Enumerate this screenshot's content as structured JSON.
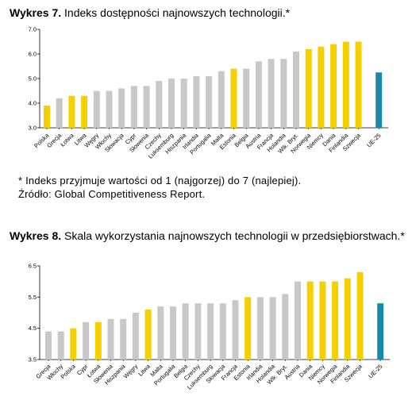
{
  "charts_text": {
    "c1": {
      "label": "Wykres 7.",
      "text": "Indeks dostępności najnowszych technologii.*",
      "note1": "* Indeks przyjmuje wartości od 1 (najgorzej) do 7 (najlepiej).",
      "note2": "Źródło: Global Competitiveness Report."
    },
    "c2": {
      "label": "Wykres 8.",
      "text": "Skala wykorzystania najnowszych technologii w przedsiębiorstwach.*"
    }
  },
  "colors": {
    "gray": "#c8c8c8",
    "yellow": "#f5d000",
    "blue": "#1a8aa8",
    "axis": "#000000"
  },
  "chart_data": [
    {
      "type": "bar",
      "title": "Indeks dostępności najnowszych technologii.*",
      "ylim": [
        3.0,
        7.0
      ],
      "yticks": [
        "7.0",
        "6.0",
        "5.0",
        "4.0",
        "3.0"
      ],
      "ytick_values": [
        7.0,
        6.0,
        5.0,
        4.0,
        3.0
      ],
      "grid": false,
      "categories": [
        "Polska",
        "Grecja",
        "Łotwa",
        "Litwa",
        "Węgry",
        "Włochy",
        "Słowacja",
        "Cypr",
        "Słowenia",
        "Czechy",
        "Luksemburg",
        "Hiszpania",
        "Irlandia",
        "Portugalia",
        "Malta",
        "Estonia",
        "Belgia",
        "Austria",
        "Francja",
        "Holandia",
        "Wlk. Bryt.",
        "Norwegia",
        "Niemcy",
        "Dania",
        "Finlandia",
        "Szwecja",
        "UE-25"
      ],
      "values": [
        3.9,
        4.2,
        4.3,
        4.3,
        4.5,
        4.5,
        4.6,
        4.7,
        4.7,
        4.9,
        5.0,
        5.0,
        5.1,
        5.1,
        5.3,
        5.4,
        5.4,
        5.7,
        5.8,
        5.8,
        6.1,
        6.2,
        6.3,
        6.4,
        6.5,
        6.5,
        5.25
      ],
      "colors": [
        "yellow",
        "gray",
        "yellow",
        "yellow",
        "gray",
        "gray",
        "gray",
        "gray",
        "gray",
        "gray",
        "gray",
        "gray",
        "gray",
        "gray",
        "gray",
        "yellow",
        "gray",
        "gray",
        "gray",
        "gray",
        "gray",
        "yellow",
        "yellow",
        "yellow",
        "yellow",
        "yellow",
        "blue"
      ]
    },
    {
      "type": "bar",
      "title": "Skala wykorzystania najnowszych technologii w przedsiębiorstwach.*",
      "ylim": [
        3.5,
        6.5
      ],
      "yticks": [
        "6.5",
        "5.5",
        "4.5",
        "3.5"
      ],
      "ytick_values": [
        6.5,
        5.5,
        4.5,
        3.5
      ],
      "grid": false,
      "categories": [
        "Grecja",
        "Włochy",
        "Polska",
        "Cypr",
        "Łotwa",
        "Słowenia",
        "Hiszpania",
        "Węgry",
        "Litwa",
        "Malta",
        "Portugalia",
        "Belgia",
        "Czechy",
        "Luksemburg",
        "Słowacja",
        "Francja",
        "Estonia",
        "Irlandia",
        "Holandia",
        "Wlk. Bryt.",
        "Austria",
        "Dania",
        "Niemcy",
        "Norwegia",
        "Finlandia",
        "Szwecja",
        "UE-25"
      ],
      "values": [
        4.4,
        4.4,
        4.5,
        4.7,
        4.7,
        4.8,
        4.8,
        5.0,
        5.1,
        5.2,
        5.2,
        5.3,
        5.3,
        5.3,
        5.3,
        5.4,
        5.5,
        5.5,
        5.5,
        5.6,
        6.0,
        6.0,
        6.0,
        6.0,
        6.1,
        6.3,
        5.3
      ],
      "colors": [
        "gray",
        "gray",
        "yellow",
        "gray",
        "yellow",
        "gray",
        "gray",
        "gray",
        "yellow",
        "gray",
        "gray",
        "gray",
        "gray",
        "gray",
        "gray",
        "gray",
        "yellow",
        "gray",
        "gray",
        "gray",
        "gray",
        "yellow",
        "yellow",
        "yellow",
        "yellow",
        "yellow",
        "blue"
      ]
    }
  ]
}
